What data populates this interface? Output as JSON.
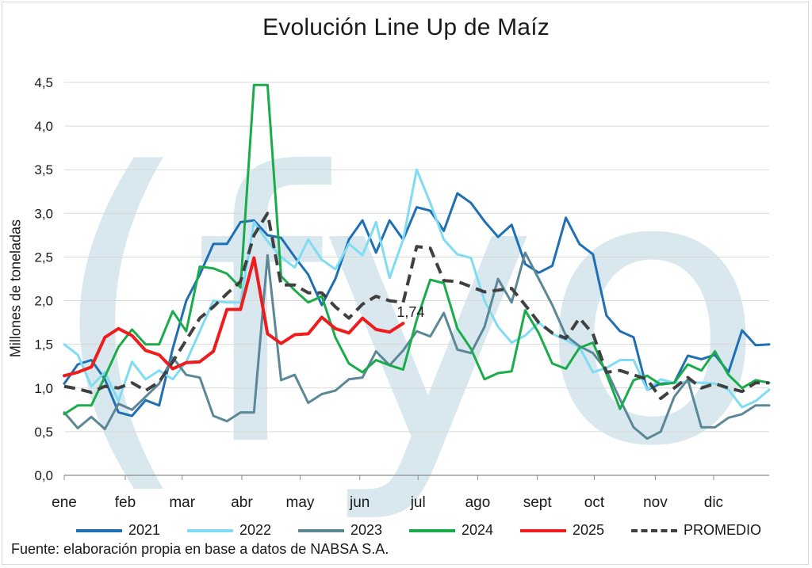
{
  "chart_data": {
    "type": "line",
    "title": "Evolución Line Up de Maíz",
    "ylabel": "Millones de toneladas",
    "xlabel": "",
    "ylim": [
      0,
      4.5
    ],
    "yticks": [
      "0,0",
      "0,5",
      "1,0",
      "1,5",
      "2,0",
      "2,5",
      "3,0",
      "3,5",
      "4,0",
      "4,5"
    ],
    "x_week_range": [
      1,
      53
    ],
    "month_ticks": [
      {
        "label": "ene",
        "week": 1
      },
      {
        "label": "feb",
        "week": 5.5
      },
      {
        "label": "mar",
        "week": 9.7
      },
      {
        "label": "abr",
        "week": 14.1
      },
      {
        "label": "may",
        "week": 18.4
      },
      {
        "label": "jun",
        "week": 22.8
      },
      {
        "label": "jul",
        "week": 27.1
      },
      {
        "label": "ago",
        "week": 31.5
      },
      {
        "label": "sept",
        "week": 35.9
      },
      {
        "label": "oct",
        "week": 40.1
      },
      {
        "label": "nov",
        "week": 44.6
      },
      {
        "label": "dic",
        "week": 48.9
      }
    ],
    "grid": "horizontal",
    "legend_position": "bottom",
    "series": [
      {
        "name": "2021",
        "color": "#1f6fb5",
        "style": "solid",
        "width": 3,
        "values": [
          1.05,
          1.27,
          1.32,
          1.1,
          0.72,
          0.68,
          0.86,
          0.8,
          1.45,
          2.0,
          2.3,
          2.65,
          2.65,
          2.9,
          2.92,
          2.75,
          2.72,
          2.5,
          2.3,
          1.95,
          2.25,
          2.7,
          2.92,
          2.55,
          2.92,
          2.7,
          3.07,
          3.03,
          2.8,
          3.23,
          3.12,
          2.91,
          2.73,
          2.87,
          2.42,
          2.32,
          2.4,
          2.95,
          2.65,
          2.53,
          1.83,
          1.65,
          1.58,
          0.98,
          1.05,
          1.06,
          1.37,
          1.33,
          1.38,
          1.18,
          1.66,
          1.49,
          1.5
        ]
      },
      {
        "name": "2022",
        "color": "#7fdcf2",
        "style": "solid",
        "width": 3,
        "values": [
          1.5,
          1.38,
          1.02,
          1.18,
          0.85,
          1.3,
          1.1,
          1.2,
          1.1,
          1.3,
          1.65,
          2.0,
          1.98,
          1.98,
          2.9,
          2.68,
          2.5,
          2.38,
          2.7,
          2.47,
          2.36,
          2.65,
          2.52,
          2.9,
          2.26,
          2.7,
          3.5,
          3.12,
          2.7,
          2.53,
          2.49,
          2.0,
          1.7,
          1.52,
          1.6,
          1.75,
          1.62,
          1.55,
          1.47,
          1.18,
          1.23,
          1.32,
          1.32,
          0.98,
          1.1,
          1.06,
          1.07,
          1.06,
          1.05,
          0.98,
          0.78,
          0.85,
          0.98
        ]
      },
      {
        "name": "2023",
        "color": "#5b8797",
        "style": "solid",
        "width": 3,
        "values": [
          0.72,
          0.54,
          0.67,
          0.53,
          0.82,
          0.75,
          0.9,
          1.05,
          1.35,
          1.15,
          1.12,
          0.68,
          0.62,
          0.72,
          0.72,
          2.52,
          1.09,
          1.15,
          0.83,
          0.93,
          0.97,
          1.1,
          1.12,
          1.42,
          1.26,
          1.43,
          1.65,
          1.59,
          1.86,
          1.44,
          1.4,
          1.7,
          2.25,
          1.98,
          2.55,
          2.25,
          1.95,
          1.6,
          1.48,
          1.4,
          1.2,
          0.87,
          0.55,
          0.42,
          0.5,
          0.9,
          1.1,
          0.55,
          0.55,
          0.66,
          0.7,
          0.8,
          0.8
        ]
      },
      {
        "name": "2024",
        "color": "#1aab4a",
        "style": "solid",
        "width": 3,
        "values": [
          0.7,
          0.8,
          0.8,
          1.13,
          1.47,
          1.67,
          1.5,
          1.5,
          1.88,
          1.65,
          2.39,
          2.37,
          2.31,
          2.15,
          4.47,
          4.47,
          2.28,
          2.12,
          1.98,
          2.05,
          1.58,
          1.28,
          1.18,
          1.32,
          1.26,
          1.21,
          1.78,
          2.24,
          2.2,
          1.68,
          1.45,
          1.1,
          1.17,
          1.19,
          1.89,
          1.63,
          1.28,
          1.22,
          1.46,
          1.52,
          1.16,
          0.76,
          1.09,
          1.14,
          1.04,
          1.06,
          1.27,
          1.2,
          1.42,
          1.15,
          1.0,
          1.09,
          1.06
        ]
      },
      {
        "name": "2025",
        "color": "#ee1c1c",
        "style": "solid",
        "width": 4,
        "values": [
          1.14,
          1.18,
          1.24,
          1.58,
          1.68,
          1.6,
          1.43,
          1.38,
          1.22,
          1.29,
          1.3,
          1.42,
          1.9,
          1.9,
          2.49,
          1.62,
          1.51,
          1.61,
          1.62,
          1.81,
          1.68,
          1.63,
          1.8,
          1.67,
          1.64,
          1.74
        ]
      },
      {
        "name": "PROMEDIO",
        "color": "#404040",
        "style": "dashed",
        "width": 4,
        "values": [
          1.02,
          0.99,
          0.95,
          1.02,
          1.0,
          1.06,
          0.97,
          1.07,
          1.3,
          1.55,
          1.8,
          1.93,
          2.08,
          2.22,
          2.75,
          3.0,
          2.18,
          2.18,
          2.09,
          2.09,
          1.93,
          1.8,
          1.96,
          2.05,
          2.0,
          1.98,
          2.62,
          2.6,
          2.23,
          2.22,
          2.16,
          2.1,
          2.12,
          2.14,
          1.95,
          1.75,
          1.63,
          1.57,
          1.8,
          1.62,
          1.18,
          1.2,
          1.15,
          1.1,
          0.88,
          1.0,
          1.12,
          1.0,
          1.05,
          1.0,
          0.96,
          1.06,
          1.06
        ]
      }
    ],
    "annotations": [
      {
        "text": "1,74",
        "series": "2025",
        "week": 26,
        "value": 1.74
      }
    ]
  },
  "legend": {
    "items": [
      {
        "label": "2021",
        "color": "#1f6fb5",
        "style": "solid"
      },
      {
        "label": "2022",
        "color": "#7fdcf2",
        "style": "solid"
      },
      {
        "label": "2023",
        "color": "#5b8797",
        "style": "solid"
      },
      {
        "label": "2024",
        "color": "#1aab4a",
        "style": "solid"
      },
      {
        "label": "2025",
        "color": "#ee1c1c",
        "style": "solid"
      },
      {
        "label": "PROMEDIO",
        "color": "#404040",
        "style": "dashed"
      }
    ]
  },
  "source": "Fuente: elaboración propia en base a datos de NABSA S.A.",
  "watermark": {
    "text": "(fyo",
    "color": "#d9e8ee"
  }
}
